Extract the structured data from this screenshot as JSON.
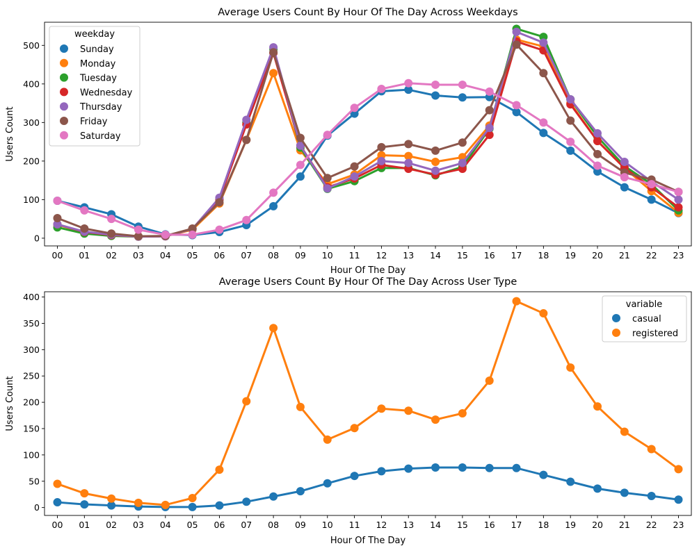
{
  "chart_data": [
    {
      "type": "line",
      "title": "Average Users Count By Hour Of The Day Across Weekdays",
      "xlabel": "Hour Of The Day",
      "ylabel": "Users Count",
      "categories": [
        "00",
        "01",
        "02",
        "03",
        "04",
        "05",
        "06",
        "07",
        "08",
        "09",
        "10",
        "11",
        "12",
        "13",
        "14",
        "15",
        "16",
        "17",
        "18",
        "19",
        "20",
        "21",
        "22",
        "23"
      ],
      "ylim": [
        -20,
        560
      ],
      "yticks": [
        0,
        100,
        200,
        300,
        400,
        500
      ],
      "legend": {
        "title": "weekday",
        "placement": "top-left"
      },
      "series": [
        {
          "name": "Sunday",
          "color": "#1f77b4",
          "values": [
            97,
            80,
            62,
            30,
            10,
            8,
            16,
            34,
            83,
            160,
            266,
            323,
            381,
            385,
            370,
            365,
            366,
            327,
            273,
            227,
            173,
            132,
            100,
            65
          ]
        },
        {
          "name": "Monday",
          "color": "#ff7f0e",
          "values": [
            35,
            15,
            8,
            5,
            5,
            22,
            90,
            255,
            428,
            228,
            140,
            165,
            215,
            213,
            198,
            210,
            292,
            515,
            497,
            350,
            252,
            182,
            122,
            66
          ]
        },
        {
          "name": "Tuesday",
          "color": "#2ca02c",
          "values": [
            28,
            12,
            6,
            4,
            5,
            24,
            100,
            300,
            490,
            235,
            128,
            148,
            182,
            182,
            163,
            185,
            284,
            543,
            522,
            360,
            263,
            187,
            140,
            72
          ]
        },
        {
          "name": "Wednesday",
          "color": "#d62728",
          "values": [
            36,
            16,
            8,
            4,
            5,
            24,
            100,
            295,
            480,
            240,
            132,
            155,
            190,
            180,
            165,
            180,
            268,
            510,
            487,
            347,
            252,
            182,
            132,
            80
          ]
        },
        {
          "name": "Thursday",
          "color": "#9467bd",
          "values": [
            36,
            17,
            9,
            4,
            5,
            24,
            105,
            307,
            495,
            240,
            129,
            160,
            200,
            195,
            175,
            195,
            286,
            535,
            507,
            360,
            272,
            198,
            147,
            100
          ]
        },
        {
          "name": "Friday",
          "color": "#8c564b",
          "values": [
            52,
            25,
            12,
            5,
            6,
            25,
            93,
            255,
            482,
            260,
            156,
            186,
            236,
            244,
            227,
            248,
            332,
            502,
            428,
            305,
            218,
            170,
            152,
            120
          ]
        },
        {
          "name": "Saturday",
          "color": "#e377c2",
          "values": [
            97,
            72,
            50,
            22,
            9,
            9,
            22,
            47,
            118,
            190,
            268,
            338,
            387,
            402,
            398,
            398,
            380,
            345,
            300,
            250,
            188,
            158,
            140,
            120
          ]
        }
      ]
    },
    {
      "type": "line",
      "title": "Average Users Count By Hour Of The Day Across User Type",
      "xlabel": "Hour Of The Day",
      "ylabel": "Users Count",
      "categories": [
        "00",
        "01",
        "02",
        "03",
        "04",
        "05",
        "06",
        "07",
        "08",
        "09",
        "10",
        "11",
        "12",
        "13",
        "14",
        "15",
        "16",
        "17",
        "18",
        "19",
        "20",
        "21",
        "22",
        "23"
      ],
      "ylim": [
        -15,
        410
      ],
      "yticks": [
        0,
        50,
        100,
        150,
        200,
        250,
        300,
        350,
        400
      ],
      "legend": {
        "title": "variable",
        "placement": "top-right"
      },
      "series": [
        {
          "name": "casual",
          "color": "#1f77b4",
          "values": [
            10,
            6,
            4,
            2,
            1,
            1,
            4,
            11,
            21,
            31,
            46,
            60,
            69,
            74,
            76,
            76,
            75,
            75,
            62,
            49,
            36,
            28,
            22,
            15
          ]
        },
        {
          "name": "registered",
          "color": "#ff7f0e",
          "values": [
            45,
            27,
            17,
            9,
            5,
            18,
            72,
            202,
            341,
            191,
            129,
            151,
            188,
            184,
            167,
            179,
            241,
            392,
            369,
            266,
            192,
            144,
            111,
            73
          ]
        }
      ]
    }
  ]
}
